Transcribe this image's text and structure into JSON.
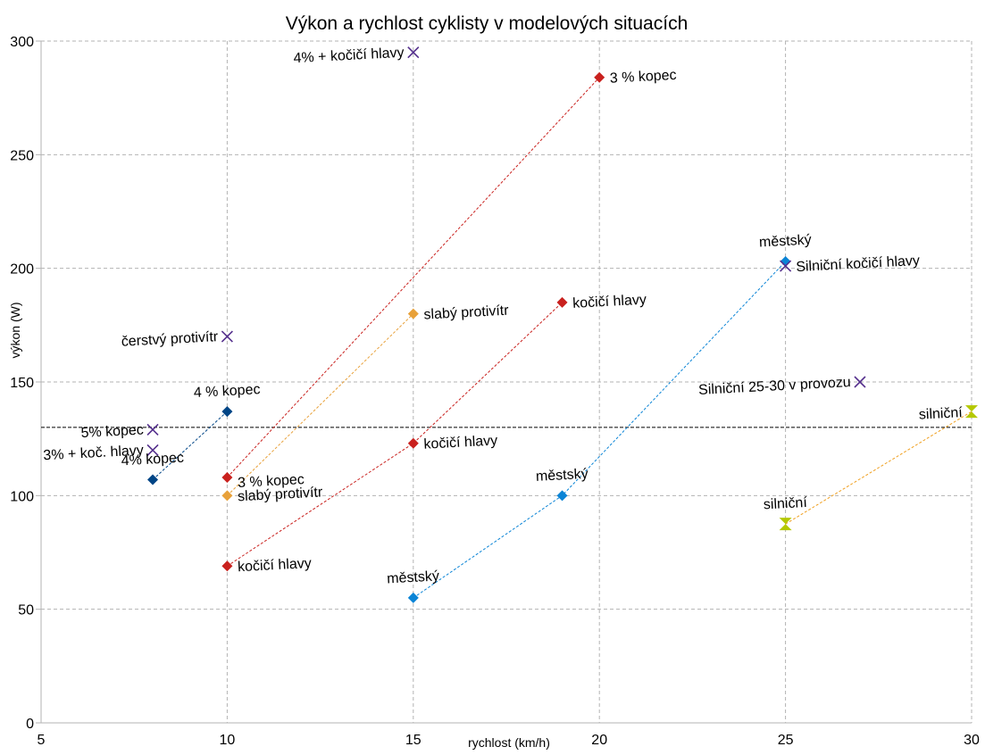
{
  "chart_data": {
    "type": "scatter",
    "title": "Výkon a rychlost cyklisty v modelových situacích",
    "xlabel": "rychlost (km/h)",
    "ylabel": "výkon (W)",
    "xlim": [
      5,
      30
    ],
    "ylim": [
      0,
      300
    ],
    "xticks": [
      5,
      10,
      15,
      20,
      25,
      30
    ],
    "yticks": [
      0,
      50,
      100,
      150,
      200,
      250,
      300
    ],
    "grid": true,
    "legend": "none",
    "reference_line": {
      "y": 130,
      "color": "#000000",
      "style": "dashed"
    },
    "series": [
      {
        "color": "#004586",
        "marker": "diamond",
        "line": "dashed",
        "points": [
          {
            "x": 8,
            "y": 107,
            "label": "4% kopec",
            "label_position": "above"
          },
          {
            "x": 10,
            "y": 137,
            "label": "4 % kopec",
            "label_position": "above"
          }
        ]
      },
      {
        "color": "#c9211e",
        "marker": "diamond",
        "line": "dashed",
        "points": [
          {
            "x": 10,
            "y": 108,
            "label": "3 % kopec",
            "label_position": "below-right"
          },
          {
            "x": 20,
            "y": 284,
            "label": "3 % kopec",
            "label_position": "right"
          }
        ]
      },
      {
        "color": "#e8a13a",
        "marker": "diamond",
        "line": "dashed",
        "points": [
          {
            "x": 10,
            "y": 100,
            "label": "slabý protivítr",
            "label_position": "right"
          },
          {
            "x": 15,
            "y": 180,
            "label": "slabý protivítr",
            "label_position": "right"
          }
        ]
      },
      {
        "color": "#c9211e",
        "marker": "diamond",
        "line": "dashed",
        "points": [
          {
            "x": 10,
            "y": 69,
            "label": "kočičí hlavy",
            "label_position": "right"
          },
          {
            "x": 15,
            "y": 123,
            "label": "kočičí hlavy",
            "label_position": "right"
          },
          {
            "x": 19,
            "y": 185,
            "label": "kočičí hlavy",
            "label_position": "right"
          }
        ]
      },
      {
        "color": "#0a84d6",
        "marker": "diamond",
        "line": "dashed",
        "points": [
          {
            "x": 15,
            "y": 55,
            "label": "městský",
            "label_position": "above"
          },
          {
            "x": 19,
            "y": 100,
            "label": "městský",
            "label_position": "above"
          },
          {
            "x": 25,
            "y": 203,
            "label": "městský",
            "label_position": "above"
          }
        ]
      },
      {
        "color": "#b4c800",
        "marker": "hourglass",
        "line": "dashed",
        "line_color": "#f0a020",
        "points": [
          {
            "x": 25,
            "y": 87.5,
            "label": "silniční",
            "label_position": "above"
          },
          {
            "x": 30,
            "y": 137,
            "label": "silniční",
            "label_position": "above-left"
          }
        ]
      },
      {
        "color": "#55308d",
        "marker": "x",
        "line": "none",
        "points": [
          {
            "x": 8,
            "y": 120,
            "label": "3% + koč. hlavy",
            "label_position": "left"
          },
          {
            "x": 8,
            "y": 129,
            "label": "5% kopec",
            "label_position": "left"
          },
          {
            "x": 10,
            "y": 170,
            "label": "čerstvý protivítr",
            "label_position": "left"
          },
          {
            "x": 15,
            "y": 295,
            "label": "4% + kočičí hlavy",
            "label_position": "left"
          },
          {
            "x": 25,
            "y": 201,
            "label": "Silniční kočičí hlavy",
            "label_position": "right"
          },
          {
            "x": 27,
            "y": 150,
            "label": "Silniční 25-30 v provozu",
            "label_position": "left"
          }
        ]
      }
    ]
  }
}
